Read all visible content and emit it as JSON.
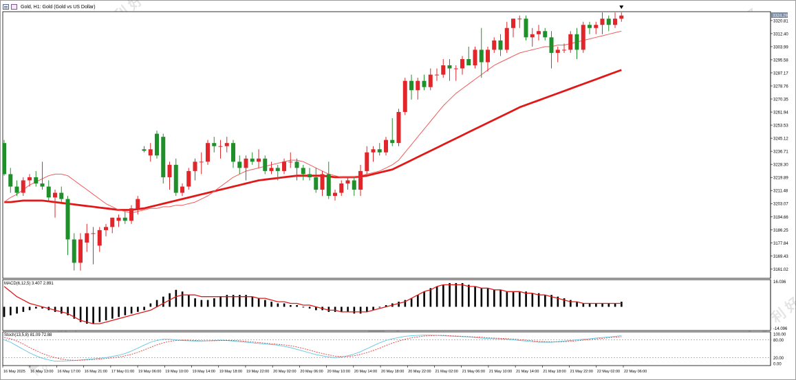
{
  "window": {
    "title": "Gold, H1:  Gold (Gold vs US Dollar)"
  },
  "colors": {
    "bull": "#e0262a",
    "bear": "#1f8f2a",
    "ma_fast": "#f25a5a",
    "ma_slow": "#e01818",
    "macd_signal": "#e01818",
    "stoch_main": "#5fc5e0",
    "stoch_signal": "#e83a3a",
    "price_tag": "#7a8aa0"
  },
  "watermark": {
    "text": "百 利 好",
    "brand": "PLOTIO"
  },
  "chart_data": [
    {
      "type": "candlestick",
      "symbol": "Gold",
      "timeframe": "H1",
      "title": "Gold, H1:  Gold (Gold vs US Dollar)",
      "ylim": [
        3155.0,
        3326.5
      ],
      "yticks": [
        "3320.81",
        "3312.40",
        "3303.99",
        "3295.58",
        "3287.17",
        "3278.76",
        "3270.35",
        "3261.94",
        "3253.53",
        "3245.12",
        "3236.71",
        "3228.30",
        "3219.89",
        "3211.48",
        "3203.07",
        "3194.66",
        "3186.25",
        "3177.84",
        "3169.43",
        "3161.02"
      ],
      "current_price": "3324.29",
      "xticks": [
        "16 May 2025",
        "16 May 13:00",
        "16 May 17:00",
        "16 May 21:00",
        "17 May 01:00",
        "19 May 06:00",
        "19 May 10:00",
        "19 May 14:00",
        "19 May 18:00",
        "19 May 22:00",
        "20 May 02:00",
        "20 May 06:00",
        "20 May 10:00",
        "20 May 14:00",
        "20 May 18:00",
        "20 May 22:00",
        "21 May 02:00",
        "21 May 06:00",
        "21 May 10:00",
        "21 May 14:00",
        "21 May 18:00",
        "21 May 22:00",
        "22 May 02:00",
        "22 May 06:00"
      ],
      "candles": [
        [
          3242.0,
          3244.0,
          3221.0,
          3222.0
        ],
        [
          3222.0,
          3226.0,
          3210.0,
          3214.0
        ],
        [
          3214.0,
          3218.0,
          3208.0,
          3210.0
        ],
        [
          3210.0,
          3220.0,
          3208.0,
          3218.0
        ],
        [
          3218.0,
          3222.0,
          3214.0,
          3220.0
        ],
        [
          3220.0,
          3224.0,
          3214.0,
          3216.0
        ],
        [
          3216.0,
          3230.0,
          3212.0,
          3214.0
        ],
        [
          3214.0,
          3218.0,
          3205.0,
          3207.0
        ],
        [
          3207.0,
          3212.0,
          3194.0,
          3210.0
        ],
        [
          3210.0,
          3214.0,
          3204.0,
          3206.0
        ],
        [
          3206.0,
          3208.0,
          3170.0,
          3180.0
        ],
        [
          3180.0,
          3184.0,
          3160.0,
          3165.0
        ],
        [
          3165.0,
          3184.0,
          3160.0,
          3180.0
        ],
        [
          3178.0,
          3190.0,
          3172.0,
          3184.0
        ],
        [
          3184.0,
          3188.0,
          3164.0,
          3184.0
        ],
        [
          3176.0,
          3188.0,
          3172.0,
          3186.0
        ],
        [
          3186.0,
          3190.0,
          3182.0,
          3188.0
        ],
        [
          3188.0,
          3194.0,
          3184.0,
          3194.0
        ],
        [
          3192.0,
          3196.0,
          3188.0,
          3194.0
        ],
        [
          3194.0,
          3198.0,
          3190.0,
          3192.0
        ],
        [
          3192.0,
          3202.0,
          3190.0,
          3200.0
        ],
        [
          3200.0,
          3208.0,
          3196.0,
          3206.0
        ],
        [
          3238.0,
          3240.0,
          3236.0,
          3237.0
        ],
        [
          3234.0,
          3242.0,
          3230.0,
          3238.0
        ],
        [
          3248.0,
          3250.0,
          3232.0,
          3234.0
        ],
        [
          3246.0,
          3248.0,
          3216.0,
          3220.0
        ],
        [
          3220.0,
          3230.0,
          3212.0,
          3228.0
        ],
        [
          3228.0,
          3232.0,
          3208.0,
          3210.0
        ],
        [
          3210.0,
          3216.0,
          3208.0,
          3214.0
        ],
        [
          3214.0,
          3226.0,
          3212.0,
          3224.0
        ],
        [
          3224.0,
          3232.0,
          3218.0,
          3230.0
        ],
        [
          3230.0,
          3236.0,
          3222.0,
          3230.0
        ],
        [
          3230.0,
          3244.0,
          3228.0,
          3242.0
        ],
        [
          3242.0,
          3246.0,
          3236.0,
          3240.0
        ],
        [
          3240.0,
          3244.0,
          3232.0,
          3240.0
        ],
        [
          3240.0,
          3246.0,
          3236.0,
          3242.0
        ],
        [
          3242.0,
          3244.0,
          3226.0,
          3230.0
        ],
        [
          3230.0,
          3234.0,
          3222.0,
          3226.0
        ],
        [
          3226.0,
          3234.0,
          3218.0,
          3232.0
        ],
        [
          3232.0,
          3236.0,
          3228.0,
          3230.0
        ],
        [
          3230.0,
          3238.0,
          3226.0,
          3232.0
        ],
        [
          3232.0,
          3234.0,
          3222.0,
          3224.0
        ],
        [
          3224.0,
          3230.0,
          3222.0,
          3226.0
        ],
        [
          3226.0,
          3228.0,
          3218.0,
          3224.0
        ],
        [
          3224.0,
          3232.0,
          3222.0,
          3230.0
        ],
        [
          3230.0,
          3236.0,
          3226.0,
          3230.0
        ],
        [
          3230.0,
          3232.0,
          3218.0,
          3226.0
        ],
        [
          3226.0,
          3228.0,
          3218.0,
          3222.0
        ],
        [
          3222.0,
          3226.0,
          3218.0,
          3220.0
        ],
        [
          3220.0,
          3226.0,
          3210.0,
          3212.0
        ],
        [
          3212.0,
          3224.0,
          3208.0,
          3222.0
        ],
        [
          3222.0,
          3230.0,
          3206.0,
          3208.0
        ],
        [
          3208.0,
          3212.0,
          3205.0,
          3210.0
        ],
        [
          3210.0,
          3218.0,
          3208.0,
          3216.0
        ],
        [
          3216.0,
          3220.0,
          3212.0,
          3218.0
        ],
        [
          3218.0,
          3220.0,
          3208.0,
          3212.0
        ],
        [
          3212.0,
          3228.0,
          3208.0,
          3224.0
        ],
        [
          3224.0,
          3240.0,
          3222.0,
          3236.0
        ],
        [
          3236.0,
          3240.0,
          3230.0,
          3238.0
        ],
        [
          3238.0,
          3242.0,
          3234.0,
          3236.0
        ],
        [
          3236.0,
          3246.0,
          3234.0,
          3244.0
        ],
        [
          3244.0,
          3258.0,
          3240.0,
          3242.0
        ],
        [
          3242.0,
          3264.0,
          3240.0,
          3262.0
        ],
        [
          3262.0,
          3284.0,
          3260.0,
          3282.0
        ],
        [
          3282.0,
          3286.0,
          3270.0,
          3276.0
        ],
        [
          3276.0,
          3284.0,
          3270.0,
          3282.0
        ],
        [
          3282.0,
          3286.0,
          3276.0,
          3278.0
        ],
        [
          3278.0,
          3290.0,
          3276.0,
          3286.0
        ],
        [
          3286.0,
          3290.0,
          3282.0,
          3286.0
        ],
        [
          3286.0,
          3296.0,
          3284.0,
          3292.0
        ],
        [
          3292.0,
          3296.0,
          3282.0,
          3290.0
        ],
        [
          3290.0,
          3292.0,
          3282.0,
          3290.0
        ],
        [
          3290.0,
          3298.0,
          3286.0,
          3296.0
        ],
        [
          3296.0,
          3304.0,
          3292.0,
          3292.0
        ],
        [
          3292.0,
          3304.0,
          3290.0,
          3302.0
        ],
        [
          3302.0,
          3316.0,
          3284.0,
          3294.0
        ],
        [
          3294.0,
          3304.0,
          3288.0,
          3302.0
        ],
        [
          3302.0,
          3310.0,
          3300.0,
          3308.0
        ],
        [
          3308.0,
          3312.0,
          3298.0,
          3302.0
        ],
        [
          3302.0,
          3320.0,
          3300.0,
          3316.0
        ],
        [
          3316.0,
          3322.0,
          3310.0,
          3322.0
        ],
        [
          3322.0,
          3324.0,
          3316.0,
          3322.0
        ],
        [
          3322.0,
          3324.0,
          3308.0,
          3310.0
        ],
        [
          3310.0,
          3316.0,
          3304.0,
          3312.0
        ],
        [
          3312.0,
          3318.0,
          3308.0,
          3314.0
        ],
        [
          3314.0,
          3316.0,
          3308.0,
          3310.0
        ],
        [
          3310.0,
          3314.0,
          3290.0,
          3300.0
        ],
        [
          3300.0,
          3304.0,
          3294.0,
          3302.0
        ],
        [
          3302.0,
          3306.0,
          3300.0,
          3302.0
        ],
        [
          3302.0,
          3314.0,
          3300.0,
          3312.0
        ],
        [
          3312.0,
          3316.0,
          3296.0,
          3302.0
        ],
        [
          3302.0,
          3320.0,
          3300.0,
          3318.0
        ],
        [
          3318.0,
          3320.0,
          3312.0,
          3316.0
        ],
        [
          3316.0,
          3320.0,
          3312.0,
          3318.0
        ],
        [
          3318.0,
          3326.0,
          3312.0,
          3322.0
        ],
        [
          3322.0,
          3324.0,
          3314.0,
          3318.0
        ],
        [
          3318.0,
          3326.0,
          3316.0,
          3322.0
        ],
        [
          3322.0,
          3326.0,
          3320.0,
          3324.0
        ]
      ],
      "ma_fast": [
        3204.0,
        3207.0,
        3209.0,
        3212.0,
        3215.0,
        3217.0,
        3219.0,
        3221.0,
        3222.0,
        3222.0,
        3221.0,
        3218.0,
        3215.0,
        3212.0,
        3209.0,
        3206.0,
        3203.0,
        3201.0,
        3199.0,
        3198.0,
        3197.0,
        3198.0,
        3199.0,
        3200.0,
        3200.0,
        3201.0,
        3201.0,
        3202.0,
        3202.0,
        3203.0,
        3204.0,
        3206.0,
        3208.0,
        3211.0,
        3214.0,
        3217.0,
        3220.0,
        3222.0,
        3224.0,
        3225.0,
        3226.0,
        3227.0,
        3228.0,
        3229.0,
        3230.0,
        3231.0,
        3231.0,
        3230.0,
        3228.0,
        3226.0,
        3224.0,
        3222.0,
        3221.0,
        3220.0,
        3220.0,
        3220.0,
        3221.0,
        3222.0,
        3223.0,
        3224.0,
        3226.0,
        3228.0,
        3231.0,
        3236.0,
        3241.0,
        3246.0,
        3251.0,
        3256.0,
        3261.0,
        3266.0,
        3270.0,
        3274.0,
        3277.0,
        3280.0,
        3283.0,
        3286.0,
        3289.0,
        3292.0,
        3294.0,
        3296.0,
        3298.0,
        3300.0,
        3301.0,
        3302.0,
        3303.0,
        3304.0,
        3304.0,
        3305.0,
        3305.0,
        3306.0,
        3307.0,
        3308.0,
        3309.0,
        3310.0,
        3311.0,
        3312.0,
        3313.0,
        3314.0
      ],
      "ma_slow": [
        3204.0,
        3204.0,
        3204.5,
        3205.0,
        3205.0,
        3205.0,
        3205.0,
        3204.5,
        3204.0,
        3203.5,
        3203.0,
        3202.5,
        3202.0,
        3201.5,
        3201.0,
        3200.5,
        3200.0,
        3199.5,
        3199.0,
        3199.0,
        3199.0,
        3199.5,
        3200.0,
        3201.0,
        3202.0,
        3203.0,
        3204.0,
        3205.0,
        3206.0,
        3207.0,
        3208.0,
        3209.0,
        3210.0,
        3211.0,
        3212.0,
        3213.0,
        3214.0,
        3215.0,
        3216.0,
        3217.0,
        3218.0,
        3218.5,
        3219.0,
        3219.5,
        3220.0,
        3220.5,
        3221.0,
        3221.0,
        3221.0,
        3221.0,
        3221.0,
        3220.5,
        3220.0,
        3220.0,
        3220.0,
        3220.0,
        3220.5,
        3221.0,
        3222.0,
        3223.0,
        3224.0,
        3225.0,
        3227.0,
        3229.0,
        3231.0,
        3233.0,
        3235.0,
        3237.0,
        3239.0,
        3241.0,
        3243.0,
        3245.0,
        3247.0,
        3249.0,
        3251.0,
        3253.0,
        3255.0,
        3257.0,
        3259.0,
        3261.0,
        3263.0,
        3265.0,
        3266.5,
        3268.0,
        3269.5,
        3271.0,
        3272.5,
        3274.0,
        3275.5,
        3277.0,
        3278.5,
        3280.0,
        3281.5,
        3283.0,
        3284.5,
        3286.0,
        3287.5,
        3289.0
      ]
    },
    {
      "type": "bar",
      "title": "MACD(6,12,5) 3.407 2.891",
      "ylim": [
        -14.0,
        16.0
      ],
      "yticks": [
        "16.036",
        "-14.096"
      ],
      "values": [
        -6,
        -5,
        -4,
        -3,
        -2,
        -1,
        -1,
        -2,
        -3,
        -4,
        -5,
        -7,
        -9,
        -10,
        -10,
        -9,
        -8,
        -7,
        -6,
        -5,
        -4,
        -3,
        -2,
        2,
        4,
        6,
        8,
        10,
        9,
        7,
        5,
        4,
        4,
        5,
        6,
        7,
        7,
        7,
        7,
        6,
        5,
        4,
        3,
        2,
        2,
        1,
        1,
        0,
        -1,
        -2,
        -2,
        -3,
        -3,
        -3,
        -3,
        -4,
        -4,
        -3,
        -2,
        0,
        1,
        2,
        3,
        4,
        5,
        7,
        9,
        11,
        12,
        13,
        14,
        14,
        14,
        13,
        12,
        11,
        11,
        10,
        10,
        9,
        9,
        9,
        9,
        8,
        8,
        7,
        7,
        6,
        5,
        4,
        3,
        2,
        2,
        2,
        2,
        2,
        2,
        3
      ],
      "signal": [
        12,
        9,
        6,
        4,
        2,
        1,
        0,
        -1,
        -2,
        -3,
        -4,
        -6,
        -8,
        -9,
        -10,
        -10,
        -9,
        -8,
        -7,
        -6,
        -5,
        -4,
        -3,
        -2,
        0,
        2,
        4,
        6,
        7,
        7,
        7,
        6,
        6,
        6,
        6,
        6,
        6,
        6,
        6,
        6,
        5,
        5,
        4,
        3,
        3,
        2,
        2,
        1,
        1,
        0,
        -1,
        -2,
        -2,
        -3,
        -3,
        -3,
        -3,
        -3,
        -2,
        -1,
        0,
        1,
        2,
        3,
        5,
        7,
        9,
        10,
        12,
        13,
        13,
        13,
        13,
        12,
        12,
        11,
        11,
        10,
        10,
        9,
        9,
        9,
        8,
        8,
        7,
        7,
        6,
        5,
        4,
        3,
        3,
        2,
        2,
        2,
        2,
        2,
        2,
        2
      ]
    },
    {
      "type": "line",
      "title": "Stoch(13,5,8) 81.09 72.88",
      "ylim": [
        0,
        100
      ],
      "yticks": [
        "100.00",
        "80.00",
        "20.00",
        "0.00"
      ],
      "series": [
        {
          "values": [
            80,
            72,
            60,
            48,
            36,
            26,
            18,
            12,
            8,
            8,
            9,
            10,
            12,
            14,
            16,
            18,
            20,
            24,
            28,
            34,
            42,
            52,
            62,
            72,
            78,
            82,
            82,
            80,
            78,
            77,
            76,
            76,
            77,
            78,
            79,
            78,
            76,
            74,
            72,
            70,
            68,
            66,
            64,
            62,
            58,
            54,
            48,
            42,
            36,
            30,
            26,
            22,
            20,
            22,
            26,
            32,
            40,
            50,
            60,
            70,
            78,
            84,
            88,
            92,
            94,
            95,
            96,
            96,
            95,
            94,
            93,
            92,
            91,
            90,
            88,
            86,
            85,
            84,
            83,
            82,
            80,
            78,
            76,
            74,
            72,
            72,
            72,
            74,
            76,
            78,
            80,
            82,
            84,
            86,
            88,
            90,
            92,
            94
          ]
        },
        {
          "values": [
            88,
            84,
            76,
            66,
            54,
            44,
            34,
            26,
            20,
            15,
            12,
            11,
            11,
            12,
            13,
            15,
            17,
            19,
            22,
            26,
            31,
            38,
            46,
            55,
            63,
            70,
            75,
            78,
            79,
            79,
            78,
            77,
            77,
            77,
            78,
            78,
            78,
            77,
            75,
            73,
            71,
            69,
            67,
            65,
            63,
            60,
            56,
            51,
            45,
            39,
            34,
            29,
            25,
            23,
            24,
            26,
            31,
            37,
            44,
            52,
            61,
            69,
            76,
            82,
            87,
            90,
            93,
            94,
            95,
            95,
            94,
            93,
            92,
            91,
            90,
            89,
            87,
            86,
            85,
            84,
            83,
            81,
            79,
            77,
            75,
            74,
            73,
            73,
            74,
            75,
            77,
            79,
            81,
            83,
            85,
            87,
            89,
            91
          ]
        }
      ]
    }
  ]
}
